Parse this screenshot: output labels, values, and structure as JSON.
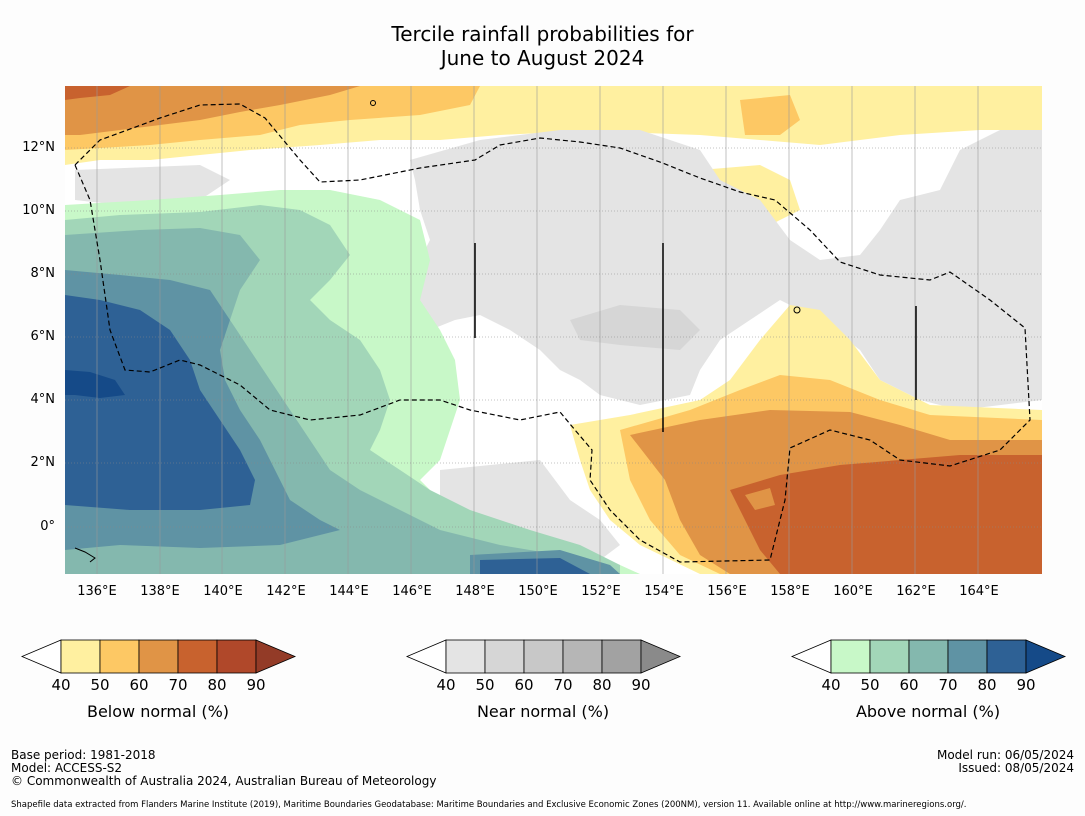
{
  "title_line1": "Tercile rainfall probabilities for",
  "title_line2": "June to August 2024",
  "lat_labels": [
    "12°N",
    "10°N",
    "8°N",
    "6°N",
    "4°N",
    "2°N",
    "0°"
  ],
  "lon_labels": [
    "136°E",
    "138°E",
    "140°E",
    "142°E",
    "144°E",
    "146°E",
    "148°E",
    "150°E",
    "152°E",
    "154°E",
    "156°E",
    "158°E",
    "160°E",
    "162°E",
    "164°E"
  ],
  "colorbars": {
    "below": {
      "label": "Below normal (%)",
      "ticks": [
        "40",
        "50",
        "60",
        "70",
        "80",
        "90"
      ],
      "colors": [
        "#fff0a0",
        "#fdc864",
        "#e09446",
        "#c8622e",
        "#b0482a",
        "#933b27"
      ]
    },
    "near": {
      "label": "Near normal (%)",
      "ticks": [
        "40",
        "50",
        "60",
        "70",
        "80",
        "90"
      ],
      "colors": [
        "#e4e4e4",
        "#d6d6d6",
        "#c8c8c8",
        "#b6b6b6",
        "#a2a2a2",
        "#8a8a8a"
      ]
    },
    "above": {
      "label": "Above normal (%)",
      "ticks": [
        "40",
        "50",
        "60",
        "70",
        "80",
        "90"
      ],
      "colors": [
        "#c8f8c8",
        "#a2d6b8",
        "#84b8ae",
        "#5f93a4",
        "#2e6195",
        "#154a88"
      ]
    }
  },
  "footer": {
    "base_period": "Base period: 1981-2018",
    "model": "Model: ACCESS-S2",
    "copyright": "© Commonwealth of Australia 2024, Australian Bureau of Meteorology",
    "model_run": "Model run: 06/05/2024",
    "issued": "Issued: 08/05/2024",
    "shapefile": "Shapefile data extracted from Flanders Marine Institute (2019), Maritime Boundaries Geodatabase: Maritime Boundaries and Exclusive Economic Zones (200NM), version 11. Available online at http://www.marineregions.org/."
  }
}
